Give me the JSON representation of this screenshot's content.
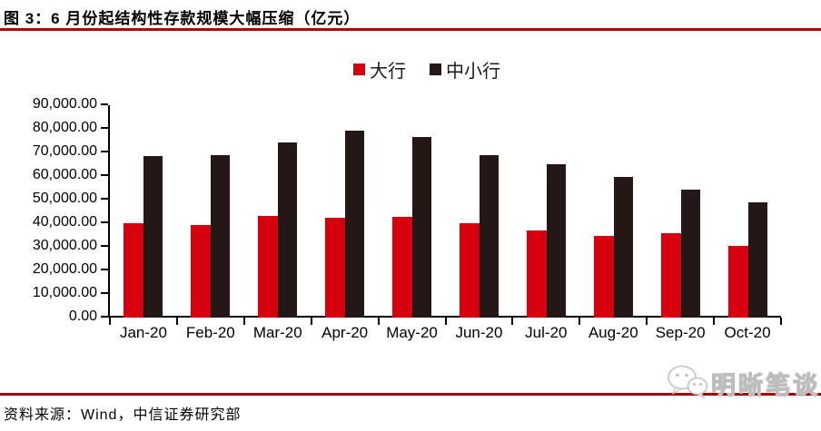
{
  "header": {
    "title": "图 3：6 月份起结构性存款规模大幅压缩（亿元）"
  },
  "legend": {
    "items": [
      "大行",
      "中小行"
    ]
  },
  "source": {
    "text": "资料来源：Wind，中信证券研究部"
  },
  "watermark": {
    "text": "明晰笔谈",
    "icon": "wechat-bubbles-icon"
  },
  "colors": {
    "bar_red": "#d7000f",
    "bar_dark": "#231815",
    "title_rule": "#b00000",
    "footer_rule": "#a40000",
    "axis": "#000000",
    "watermark_gray": "#bdbdbd"
  },
  "chart_data": {
    "type": "bar",
    "title": "图 3：6 月份起结构性存款规模大幅压缩（亿元）",
    "unit": "亿元",
    "categories": [
      "Jan-20",
      "Feb-20",
      "Mar-20",
      "Apr-20",
      "May-20",
      "Jun-20",
      "Jul-20",
      "Aug-20",
      "Sep-20",
      "Oct-20"
    ],
    "series": [
      {
        "name": "大行",
        "color": "#d7000f",
        "values": [
          40000,
          39300,
          43000,
          42300,
          42600,
          40100,
          36900,
          34600,
          35900,
          30400
        ]
      },
      {
        "name": "中小行",
        "color": "#231815",
        "values": [
          68600,
          69000,
          74200,
          79300,
          76500,
          68700,
          64900,
          59600,
          54200,
          49000
        ]
      }
    ],
    "xlabel": "",
    "ylabel": "",
    "ylim": [
      0,
      90000
    ],
    "y_tick_step": 10000,
    "y_tick_labels": [
      "0.00",
      "10,000.00",
      "20,000.00",
      "30,000.00",
      "40,000.00",
      "50,000.00",
      "60,000.00",
      "70,000.00",
      "80,000.00",
      "90,000.00"
    ],
    "grid": false,
    "legend_position": "top-center"
  }
}
